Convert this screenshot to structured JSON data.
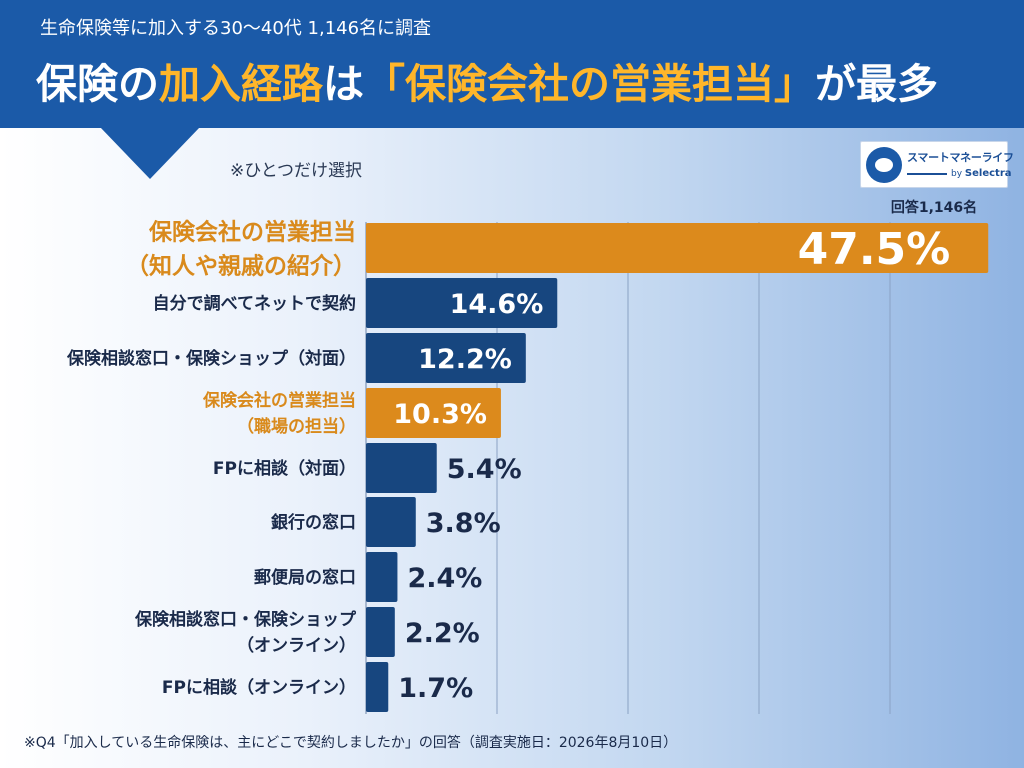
{
  "header": {
    "subtitle": "生命保険等に加入する30〜40代 1,146名に調査",
    "title_part1": "保険の",
    "title_part2": "加入経路",
    "title_part3": "は",
    "title_part4": "「保険会社の営業担当」",
    "title_part5": "が最多"
  },
  "note": "※ひとつだけ選択",
  "logo": {
    "name": "スマートマネーライフ",
    "by": "by",
    "partner": "Selectra"
  },
  "respondents": "回答1,146名",
  "footnote": "※Q4「加入している生命保険は、主にどこで契約しましたか」の回答（調査実施日：2026年8月10日）",
  "colors": {
    "header_bg": "#1b5aa8",
    "highlight": "#ffb62a",
    "bar_blue": "#17467f",
    "bar_orange": "#dc8a1c",
    "label_orange": "#d98a1c"
  },
  "chart_data": {
    "type": "bar",
    "orientation": "horizontal",
    "unit": "%",
    "xlim": [
      0,
      50
    ],
    "grid": true,
    "categories": [
      [
        "保険会社の営業担当",
        "（知人や親戚の紹介）"
      ],
      [
        "自分で調べてネットで契約"
      ],
      [
        "保険相談窓口・保険ショップ（対面）"
      ],
      [
        "保険会社の営業担当",
        "（職場の担当）"
      ],
      [
        "FPに相談（対面）"
      ],
      [
        "銀行の窓口"
      ],
      [
        "郵便局の窓口"
      ],
      [
        "保険相談窓口・保険ショップ",
        "（オンライン）"
      ],
      [
        "FPに相談（オンライン）"
      ]
    ],
    "values": [
      47.5,
      14.6,
      12.2,
      10.3,
      5.4,
      3.8,
      2.4,
      2.2,
      1.7
    ],
    "value_labels": [
      "47.5%",
      "14.6%",
      "12.2%",
      "10.3%",
      "5.4%",
      "3.8%",
      "2.4%",
      "2.2%",
      "1.7%"
    ],
    "highlight": [
      true,
      false,
      false,
      true,
      false,
      false,
      false,
      false,
      false
    ]
  }
}
